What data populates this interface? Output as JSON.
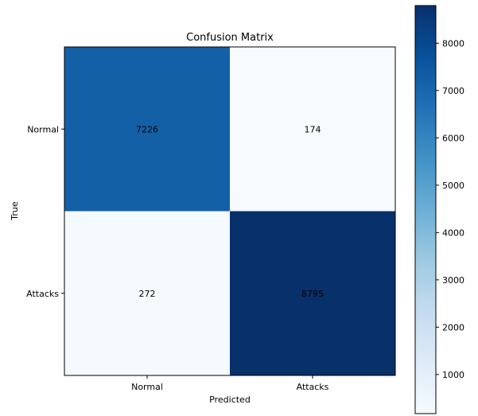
{
  "chart_data": {
    "type": "heatmap",
    "title": "Confusion Matrix",
    "xlabel": "Predicted",
    "ylabel": "True",
    "x_categories": [
      "Normal",
      "Attacks"
    ],
    "y_categories": [
      "Normal",
      "Attacks"
    ],
    "values": [
      [
        7226,
        174
      ],
      [
        272,
        8795
      ]
    ],
    "colormap": "Blues",
    "colormap_stops": [
      "#f7fbff",
      "#deebf7",
      "#c6dbef",
      "#9ecae1",
      "#6baed6",
      "#4292c6",
      "#2171b5",
      "#08519c",
      "#08306b"
    ],
    "colorbar": {
      "min": 174,
      "max": 8795,
      "ticks": [
        1000,
        2000,
        3000,
        4000,
        5000,
        6000,
        7000,
        8000
      ]
    },
    "grid": false,
    "legend": "colorbar-right"
  }
}
